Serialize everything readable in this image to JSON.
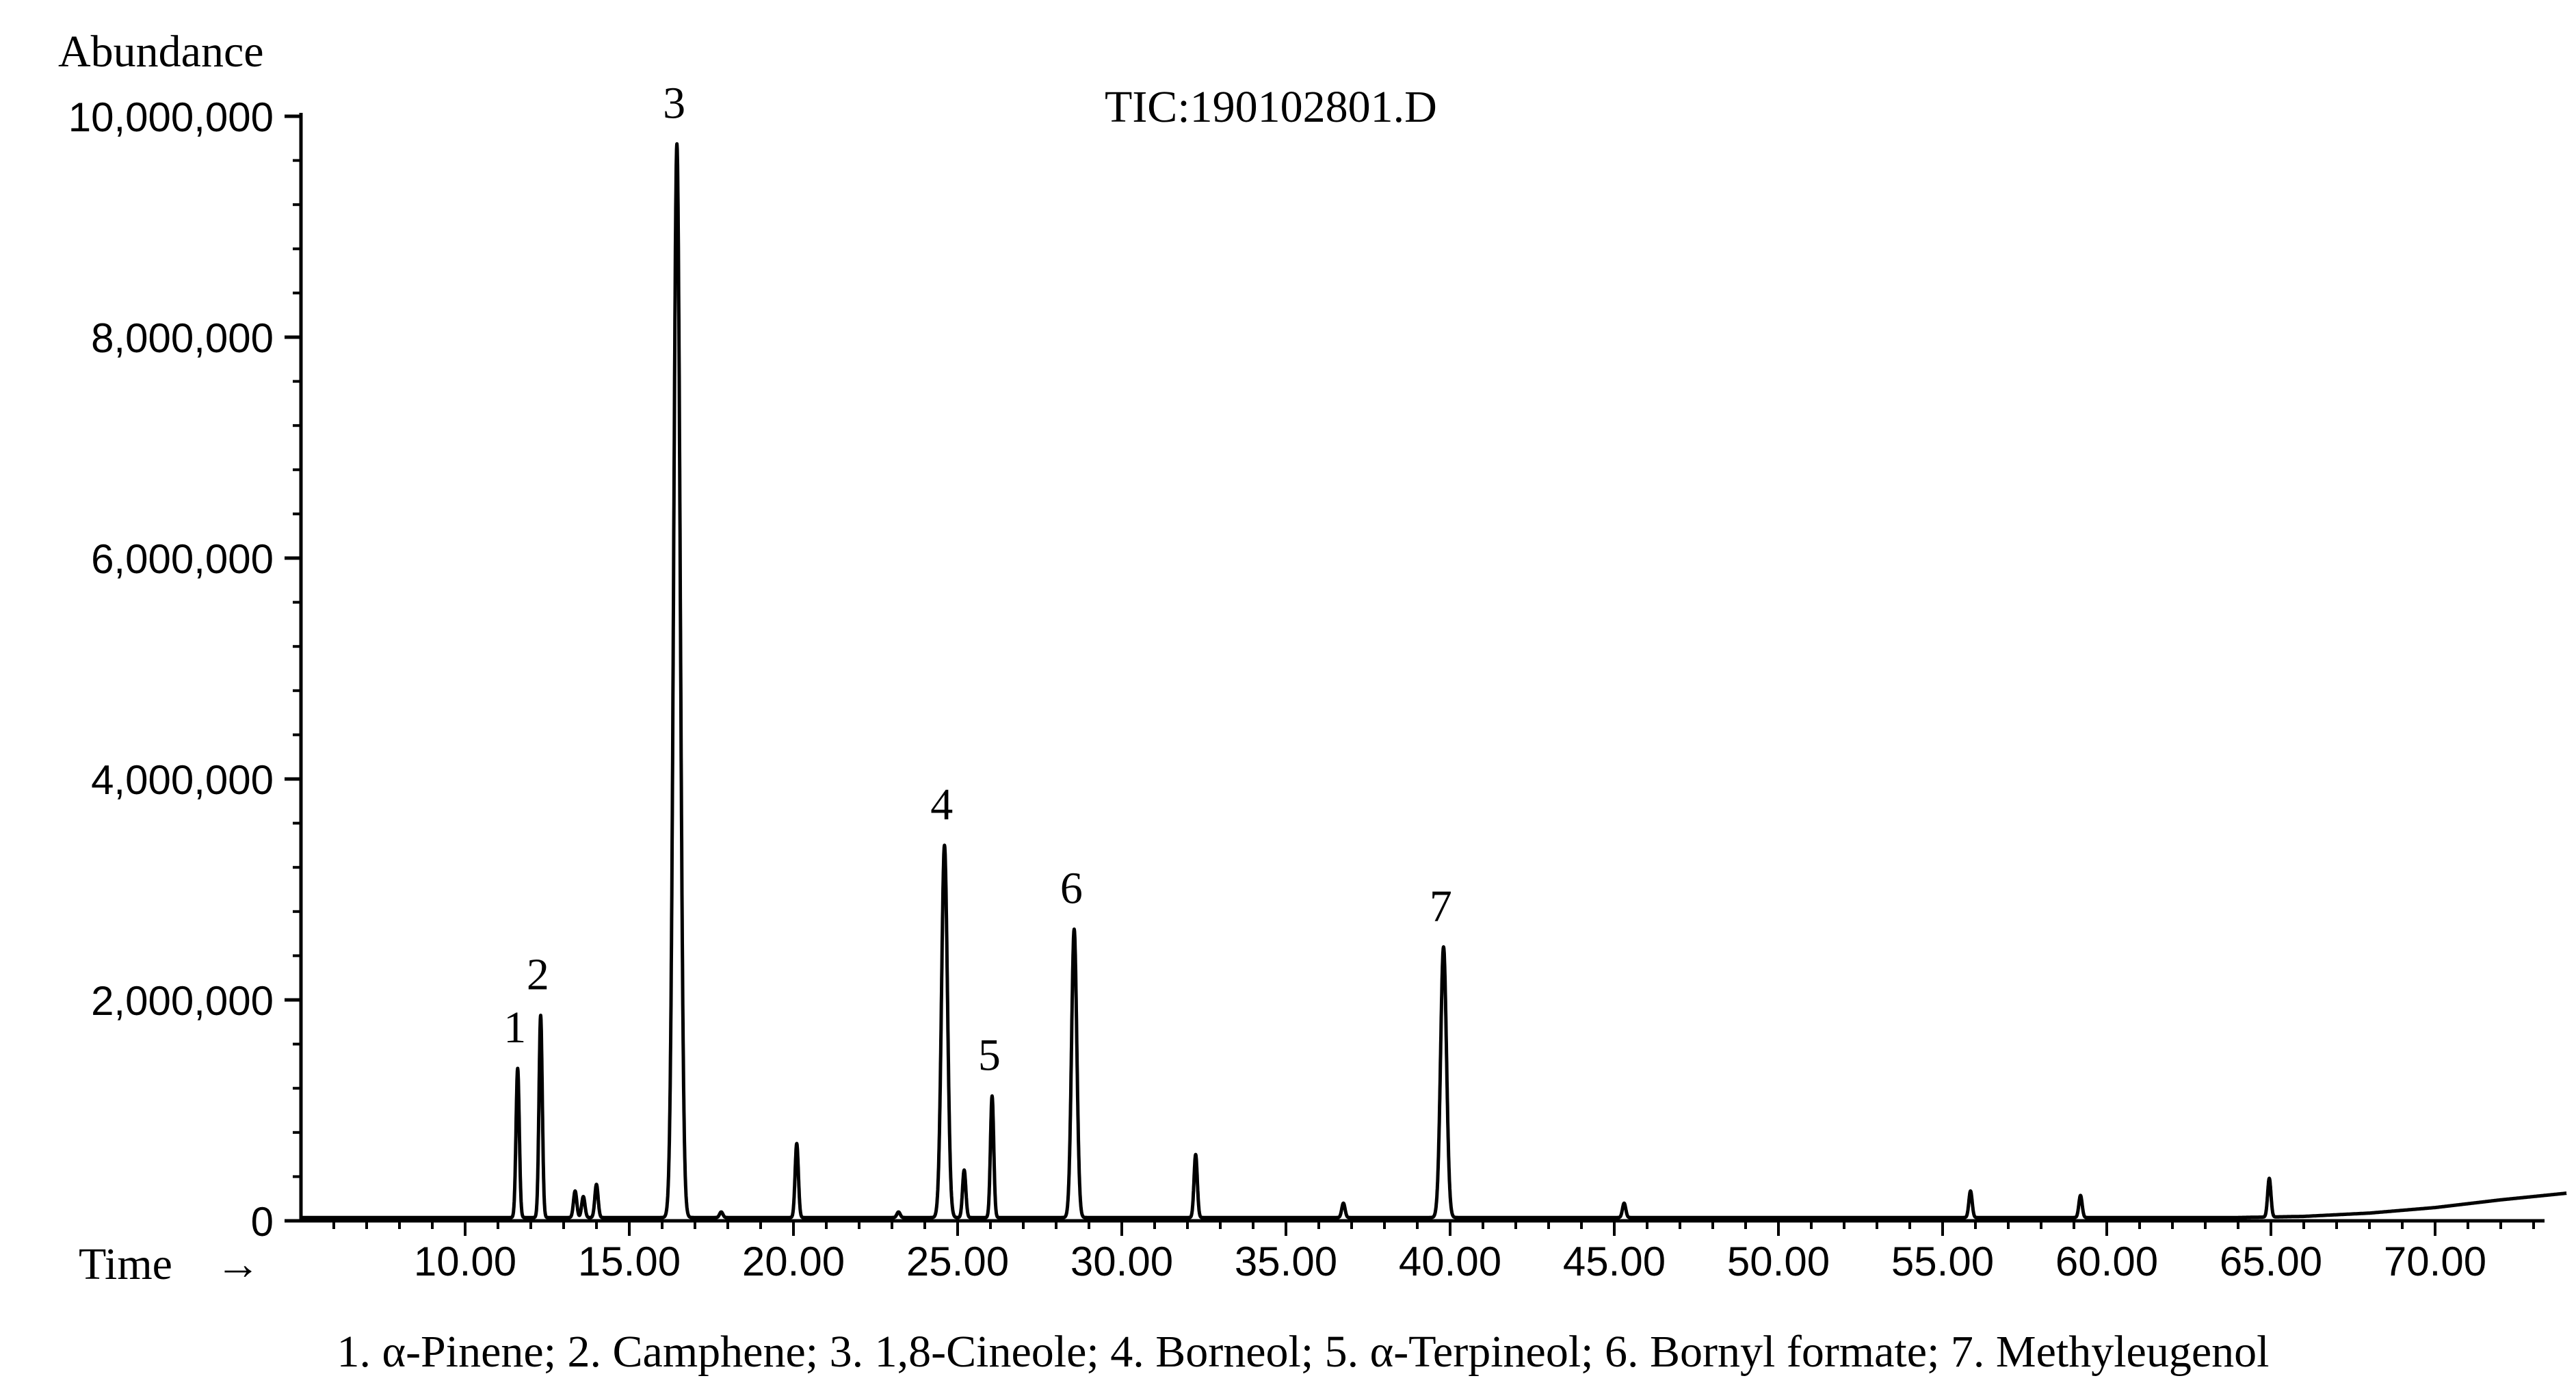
{
  "chart_data": {
    "type": "line",
    "title": "TIC:190102801.D",
    "ylabel": "Abundance",
    "xlabel": "Time",
    "xlabel_arrow": "→",
    "xlim": [
      6.0,
      74.0
    ],
    "ylim": [
      0,
      10000000
    ],
    "x_ticks": [
      10.0,
      15.0,
      20.0,
      25.0,
      30.0,
      35.0,
      40.0,
      45.0,
      50.0,
      55.0,
      60.0,
      65.0,
      70.0
    ],
    "x_tick_labels": [
      "10.00",
      "15.00",
      "20.00",
      "25.00",
      "30.00",
      "35.00",
      "40.00",
      "45.00",
      "50.00",
      "55.00",
      "60.00",
      "65.00",
      "70.00"
    ],
    "y_ticks": [
      0,
      2000000,
      4000000,
      6000000,
      8000000,
      10000000
    ],
    "y_tick_labels": [
      "0",
      "2,000,000",
      "4,000,000",
      "6,000,000",
      "8,000,000",
      "10,000,000"
    ],
    "grid": false,
    "line_color": "#000000",
    "baseline": 30000,
    "peaks": [
      {
        "label": "1",
        "x": 11.6,
        "y": 1380000,
        "w": 0.05
      },
      {
        "label": "2",
        "x": 12.3,
        "y": 1860000,
        "w": 0.05
      },
      {
        "label": "",
        "x": 13.35,
        "y": 270000,
        "w": 0.05
      },
      {
        "label": "",
        "x": 13.6,
        "y": 220000,
        "w": 0.05
      },
      {
        "label": "",
        "x": 14.0,
        "y": 330000,
        "w": 0.05
      },
      {
        "label": "3",
        "x": 16.45,
        "y": 9750000,
        "w": 0.1
      },
      {
        "label": "",
        "x": 17.8,
        "y": 80000,
        "w": 0.05
      },
      {
        "label": "",
        "x": 20.1,
        "y": 700000,
        "w": 0.05
      },
      {
        "label": "",
        "x": 23.2,
        "y": 80000,
        "w": 0.05
      },
      {
        "label": "4",
        "x": 24.6,
        "y": 3400000,
        "w": 0.09
      },
      {
        "label": "",
        "x": 25.2,
        "y": 460000,
        "w": 0.05
      },
      {
        "label": "5",
        "x": 26.05,
        "y": 1130000,
        "w": 0.05
      },
      {
        "label": "6",
        "x": 28.55,
        "y": 2640000,
        "w": 0.08
      },
      {
        "label": "",
        "x": 32.25,
        "y": 600000,
        "w": 0.05
      },
      {
        "label": "",
        "x": 36.75,
        "y": 160000,
        "w": 0.05
      },
      {
        "label": "7",
        "x": 39.8,
        "y": 2480000,
        "w": 0.09
      },
      {
        "label": "",
        "x": 45.3,
        "y": 160000,
        "w": 0.05
      },
      {
        "label": "",
        "x": 55.85,
        "y": 270000,
        "w": 0.05
      },
      {
        "label": "",
        "x": 59.2,
        "y": 230000,
        "w": 0.05
      },
      {
        "label": "",
        "x": 64.95,
        "y": 380000,
        "w": 0.05
      }
    ],
    "baseline_drift": [
      {
        "x": 64.0,
        "y": 30000
      },
      {
        "x": 66.0,
        "y": 40000
      },
      {
        "x": 68.0,
        "y": 70000
      },
      {
        "x": 70.0,
        "y": 120000
      },
      {
        "x": 72.0,
        "y": 190000
      },
      {
        "x": 74.0,
        "y": 250000
      }
    ],
    "caption": "1. α-Pinene; 2. Camphene; 3. 1,8-Cineole; 4. Borneol; 5. α-Terpineol; 6. Bornyl formate; 7. Methyleugenol"
  }
}
